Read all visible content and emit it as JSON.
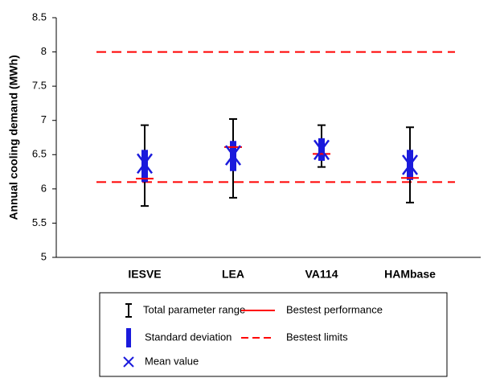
{
  "chart_data": {
    "type": "errorbar",
    "y_label": "Annual cooling demand (MWh)",
    "categories": [
      "IESVE",
      "LEA",
      "VA114",
      "HAMbase"
    ],
    "ylim": [
      5,
      8.5
    ],
    "yticks": [
      5,
      5.5,
      6,
      6.5,
      7,
      7.5,
      8,
      8.5
    ],
    "ranges": {
      "name": "Total parameter range",
      "color": "#000000",
      "lows": [
        5.75,
        5.87,
        6.32,
        5.8
      ],
      "highs": [
        6.93,
        7.02,
        6.93,
        6.9
      ]
    },
    "std_devs": {
      "name": "Standard deviation",
      "color": "#1a1adc",
      "lows": [
        6.1,
        6.26,
        6.41,
        6.13
      ],
      "highs": [
        6.57,
        6.7,
        6.74,
        6.57
      ]
    },
    "means": {
      "name": "Mean value",
      "color": "#1a1adc",
      "values": [
        6.37,
        6.49,
        6.57,
        6.35
      ]
    },
    "performance": {
      "name": "Bestest performance",
      "color": "#ff0000",
      "values": [
        6.15,
        6.61,
        6.51,
        6.16
      ]
    },
    "limits": {
      "name": "Bestest limits",
      "color": "#ff0000",
      "values": [
        8,
        6.1
      ]
    }
  }
}
